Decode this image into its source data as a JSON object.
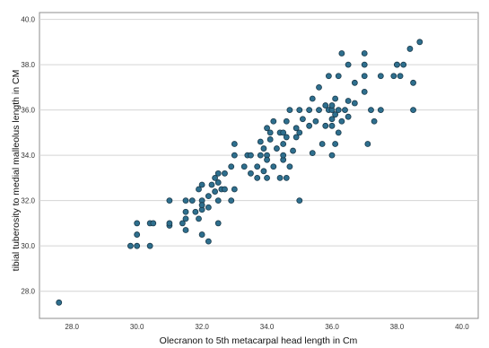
{
  "chart_data": {
    "type": "scatter",
    "title": "",
    "xlabel": "Olecranon to 5th metacarpal head length in Cm",
    "ylabel": "tibial tuberosity to medial malleolus length in CM",
    "xlim": [
      27.0,
      40.5
    ],
    "ylim": [
      26.8,
      40.3
    ],
    "x_ticks": [
      "28.0",
      "30.0",
      "32.0",
      "34.0",
      "36.0",
      "38.0",
      "40.0"
    ],
    "y_ticks": [
      "28.0",
      "30.0",
      "32.0",
      "34.0",
      "36.0",
      "38.0",
      "40.0"
    ],
    "grid": "horizontal",
    "marker_color": "#2e6f8e",
    "marker_edge_color": "#1b3a4b",
    "series": [
      {
        "points": [
          [
            27.6,
            27.5
          ],
          [
            29.8,
            30.0
          ],
          [
            30.0,
            30.0
          ],
          [
            30.0,
            30.5
          ],
          [
            30.0,
            31.0
          ],
          [
            30.4,
            30.0
          ],
          [
            30.4,
            31.0
          ],
          [
            30.5,
            31.0
          ],
          [
            31.0,
            30.9
          ],
          [
            31.0,
            31.0
          ],
          [
            31.0,
            32.0
          ],
          [
            31.4,
            31.0
          ],
          [
            31.5,
            31.2
          ],
          [
            31.5,
            30.7
          ],
          [
            31.5,
            31.5
          ],
          [
            31.5,
            32.0
          ],
          [
            31.7,
            32.0
          ],
          [
            31.8,
            31.5
          ],
          [
            31.9,
            31.2
          ],
          [
            31.9,
            32.5
          ],
          [
            32.0,
            31.6
          ],
          [
            32.0,
            32.0
          ],
          [
            32.0,
            32.7
          ],
          [
            32.0,
            30.5
          ],
          [
            32.0,
            31.8
          ],
          [
            32.2,
            31.7
          ],
          [
            32.2,
            32.2
          ],
          [
            32.2,
            30.2
          ],
          [
            32.3,
            32.7
          ],
          [
            32.4,
            33.0
          ],
          [
            32.4,
            32.4
          ],
          [
            32.5,
            32.0
          ],
          [
            32.5,
            32.8
          ],
          [
            32.5,
            33.2
          ],
          [
            32.5,
            31.0
          ],
          [
            32.6,
            32.5
          ],
          [
            32.7,
            32.5
          ],
          [
            32.7,
            33.2
          ],
          [
            32.9,
            33.5
          ],
          [
            32.9,
            32.0
          ],
          [
            33.0,
            32.5
          ],
          [
            33.0,
            34.0
          ],
          [
            33.0,
            34.5
          ],
          [
            33.3,
            33.5
          ],
          [
            33.4,
            34.0
          ],
          [
            33.5,
            33.2
          ],
          [
            33.5,
            34.0
          ],
          [
            33.7,
            33.0
          ],
          [
            33.7,
            33.5
          ],
          [
            33.8,
            34.0
          ],
          [
            33.8,
            34.6
          ],
          [
            33.9,
            33.3
          ],
          [
            33.9,
            34.3
          ],
          [
            34.0,
            34.0
          ],
          [
            34.0,
            33.0
          ],
          [
            34.0,
            35.2
          ],
          [
            34.0,
            33.8
          ],
          [
            34.1,
            34.7
          ],
          [
            34.1,
            35.0
          ],
          [
            34.2,
            35.5
          ],
          [
            34.2,
            33.5
          ],
          [
            34.3,
            34.3
          ],
          [
            34.4,
            35.0
          ],
          [
            34.4,
            33.0
          ],
          [
            34.5,
            33.8
          ],
          [
            34.5,
            34.0
          ],
          [
            34.5,
            34.5
          ],
          [
            34.5,
            35.0
          ],
          [
            34.6,
            33.0
          ],
          [
            34.6,
            34.8
          ],
          [
            34.6,
            35.5
          ],
          [
            34.7,
            33.5
          ],
          [
            34.7,
            36.0
          ],
          [
            34.8,
            34.2
          ],
          [
            34.9,
            35.2
          ],
          [
            34.9,
            34.8
          ],
          [
            35.0,
            32.0
          ],
          [
            35.0,
            35.0
          ],
          [
            35.0,
            36.0
          ],
          [
            35.1,
            35.6
          ],
          [
            35.3,
            35.3
          ],
          [
            35.3,
            36.0
          ],
          [
            35.4,
            34.1
          ],
          [
            35.4,
            36.5
          ],
          [
            35.5,
            35.5
          ],
          [
            35.6,
            36.0
          ],
          [
            35.6,
            37.0
          ],
          [
            35.7,
            34.5
          ],
          [
            35.8,
            35.3
          ],
          [
            35.8,
            36.2
          ],
          [
            35.9,
            36.0
          ],
          [
            35.9,
            37.5
          ],
          [
            36.0,
            34.0
          ],
          [
            36.0,
            35.3
          ],
          [
            36.0,
            35.6
          ],
          [
            36.0,
            36.0
          ],
          [
            36.0,
            36.2
          ],
          [
            36.1,
            34.5
          ],
          [
            36.1,
            35.8
          ],
          [
            36.1,
            36.5
          ],
          [
            36.2,
            35.0
          ],
          [
            36.2,
            36.0
          ],
          [
            36.2,
            37.5
          ],
          [
            36.3,
            35.5
          ],
          [
            36.3,
            38.5
          ],
          [
            36.4,
            36.0
          ],
          [
            36.5,
            35.7
          ],
          [
            36.5,
            36.4
          ],
          [
            36.5,
            38.0
          ],
          [
            36.7,
            36.3
          ],
          [
            36.7,
            37.2
          ],
          [
            37.0,
            36.8
          ],
          [
            37.0,
            38.0
          ],
          [
            37.0,
            38.5
          ],
          [
            37.0,
            37.5
          ],
          [
            37.1,
            34.5
          ],
          [
            37.2,
            36.0
          ],
          [
            37.3,
            35.5
          ],
          [
            37.5,
            36.0
          ],
          [
            37.5,
            37.5
          ],
          [
            37.9,
            37.5
          ],
          [
            38.0,
            38.0
          ],
          [
            38.0,
            38.0
          ],
          [
            38.1,
            37.5
          ],
          [
            38.2,
            38.0
          ],
          [
            38.4,
            38.7
          ],
          [
            38.5,
            36.0
          ],
          [
            38.5,
            37.2
          ],
          [
            38.7,
            39.0
          ]
        ]
      }
    ]
  }
}
